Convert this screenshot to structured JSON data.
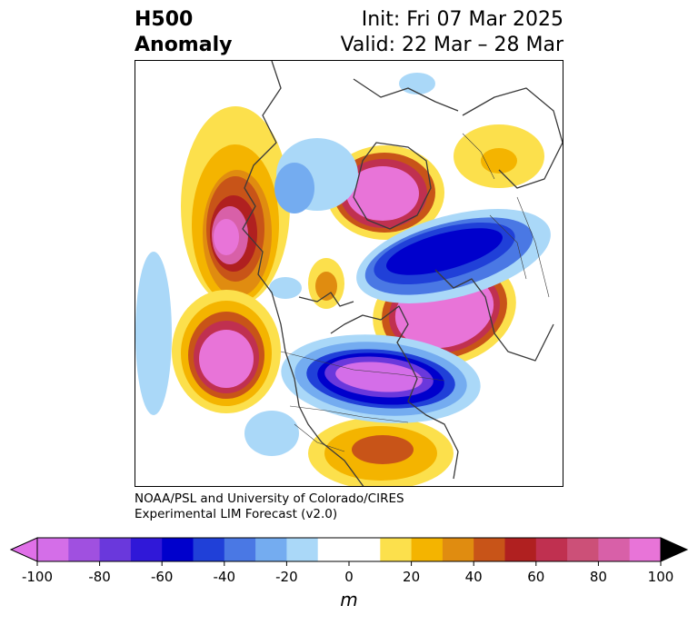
{
  "title": {
    "left_line1": "H500",
    "left_line2": "Anomaly",
    "right_line1": "Init: Fri 07 Mar 2025",
    "right_line2": "Valid: 22 Mar – 28 Mar"
  },
  "credit": {
    "line1": "NOAA/PSL and University of Colorado/CIRES",
    "line2": "Experimental LIM Forecast (v2.0)"
  },
  "colorbar": {
    "unit": "m",
    "ticks": [
      "-100",
      "-80",
      "-60",
      "-40",
      "-20",
      "0",
      "20",
      "40",
      "60",
      "80",
      "100"
    ],
    "colors": [
      "#d46ee8",
      "#a050e0",
      "#6a38dc",
      "#3018d8",
      "#0000cc",
      "#2040d8",
      "#4a78e4",
      "#74acf0",
      "#aad8f8",
      "#ffffff",
      "#ffffff",
      "#fce04c",
      "#f4b400",
      "#e08c10",
      "#c85418",
      "#b02020",
      "#c03050",
      "#cc5078",
      "#d860a8",
      "#e874d8"
    ],
    "low_extend_color": "#e070e8",
    "high_extend_color": "#000000"
  },
  "colors": {
    "land_outline": "#3a3a3a"
  }
}
